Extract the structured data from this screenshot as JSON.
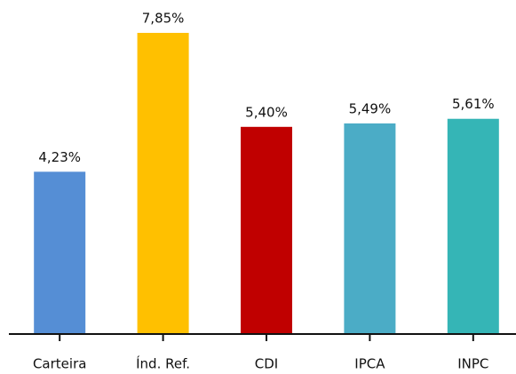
{
  "chart_data": {
    "type": "bar",
    "categories": [
      "Carteira",
      "Índ. Ref.",
      "CDI",
      "IPCA",
      "INPC"
    ],
    "values": [
      4.23,
      7.85,
      5.4,
      5.49,
      5.61
    ],
    "value_labels": [
      "4,23%",
      "7,85%",
      "5,40%",
      "5,49%",
      "5,61%"
    ],
    "colors": [
      "#558ed5",
      "#ffc000",
      "#c00000",
      "#4bacc6",
      "#35b5b6"
    ]
  }
}
